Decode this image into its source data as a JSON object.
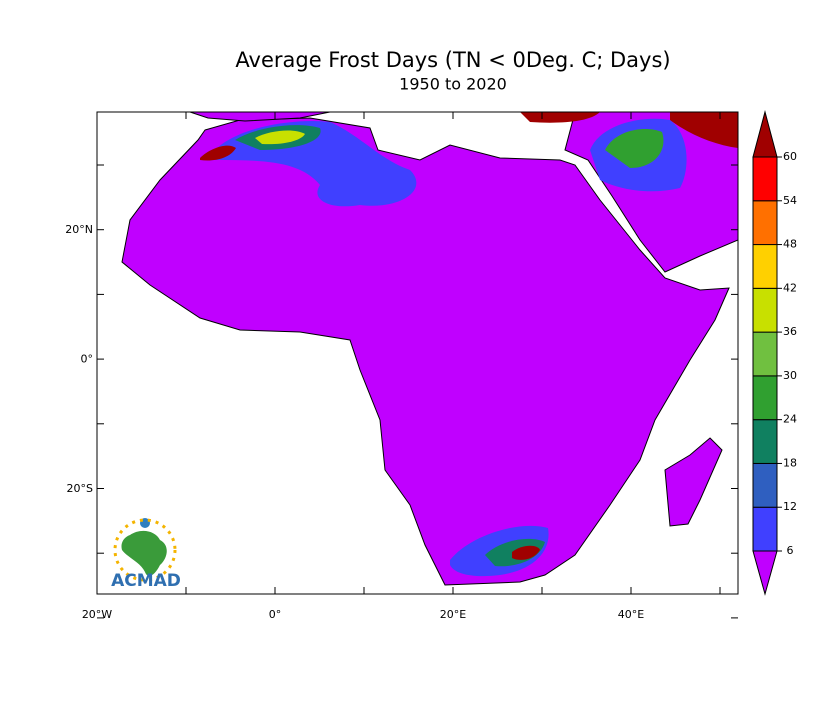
{
  "title": "Average Frost Days (TN < 0Deg. C; Days)",
  "subtitle": "1950 to 2020",
  "x_ticks": [
    "20°W",
    "0°",
    "20°E",
    "40°E"
  ],
  "y_ticks": [
    "20°N",
    "0°",
    "20°S"
  ],
  "colorbar": {
    "levels": [
      6,
      12,
      18,
      24,
      30,
      36,
      42,
      48,
      54,
      60
    ],
    "colors": [
      "#c000ff",
      "#4040ff",
      "#2f5fc0",
      "#108060",
      "#30a030",
      "#70c040",
      "#c8e000",
      "#ffd000",
      "#ff7000",
      "#ff0000",
      "#a00000"
    ]
  },
  "logo": "ACMAD"
}
